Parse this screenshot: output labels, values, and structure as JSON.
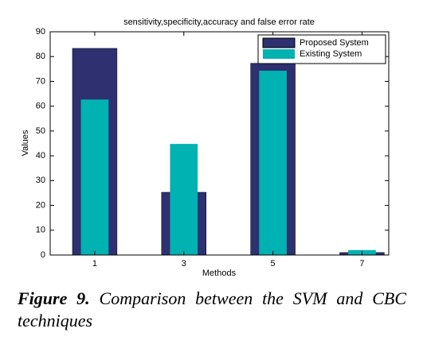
{
  "chart_data": {
    "type": "bar",
    "title": "sensitivity,specificity,accuracy and false error rate",
    "xlabel": "Methods",
    "ylabel": "Values",
    "x": [
      1,
      3,
      5,
      7
    ],
    "series": [
      {
        "name": "Proposed System",
        "color": "#2e3070",
        "values": [
          83.3,
          25.3,
          77.3,
          1
        ]
      },
      {
        "name": "Existing System",
        "color": "#00b2b2",
        "values": [
          62.7,
          44.8,
          74.3,
          2
        ]
      }
    ],
    "xlim": [
      0,
      7.6
    ],
    "xticks": [
      1,
      3,
      5,
      7
    ],
    "ylim": [
      0,
      90
    ],
    "yticks": [
      0,
      10,
      20,
      30,
      40,
      50,
      60,
      70,
      80,
      90
    ],
    "legend": "upper-right"
  },
  "caption": {
    "label": "Figure 9.",
    "text": "Comparison between the SVM and CBC techniques"
  }
}
